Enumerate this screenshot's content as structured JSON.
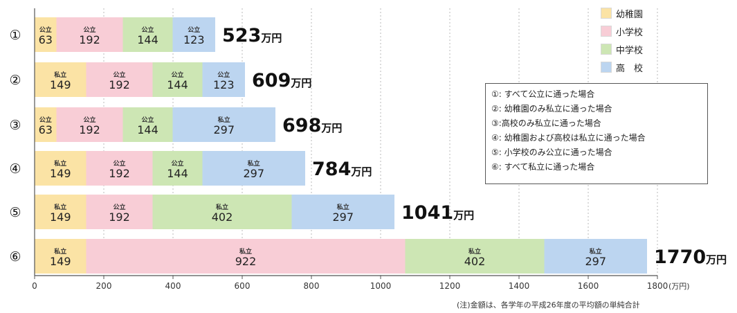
{
  "chart_data": {
    "type": "bar",
    "orientation": "horizontal",
    "stacked": true,
    "categories": [
      "①",
      "②",
      "③",
      "④",
      "⑤",
      "⑥"
    ],
    "series": [
      {
        "name": "幼稚園",
        "color": "#fbe3a5",
        "values": [
          63,
          149,
          63,
          149,
          149,
          149
        ],
        "type_labels": [
          "公立",
          "私立",
          "公立",
          "私立",
          "私立",
          "私立"
        ]
      },
      {
        "name": "小学校",
        "color": "#f8cdd6",
        "values": [
          192,
          192,
          192,
          192,
          192,
          922
        ],
        "type_labels": [
          "公立",
          "公立",
          "公立",
          "公立",
          "公立",
          "私立"
        ]
      },
      {
        "name": "中学校",
        "color": "#cde6b4",
        "values": [
          144,
          144,
          144,
          144,
          402,
          402
        ],
        "type_labels": [
          "公立",
          "公立",
          "公立",
          "公立",
          "私立",
          "私立"
        ]
      },
      {
        "name": "高　校",
        "color": "#bcd5f0",
        "values": [
          123,
          123,
          297,
          297,
          297,
          297
        ],
        "type_labels": [
          "公立",
          "公立",
          "私立",
          "私立",
          "私立",
          "私立"
        ]
      }
    ],
    "totals": [
      {
        "number": "523",
        "unit": "万円"
      },
      {
        "number": "609",
        "unit": "万円"
      },
      {
        "number": "698",
        "unit": "万円"
      },
      {
        "number": "784",
        "unit": "万円"
      },
      {
        "number": "1041",
        "unit": "万円"
      },
      {
        "number": "1770",
        "unit": "万円"
      }
    ],
    "xlim": [
      0,
      1800
    ],
    "xticks": [
      0,
      200,
      400,
      600,
      800,
      1000,
      1200,
      1400,
      1600,
      1800
    ],
    "xunit": "(万円)",
    "grid": "vertical dotted",
    "legend_position": "top-right",
    "scenarios": [
      "①: すべて公立に通った場合",
      "②: 幼稚園のみ私立に通った場合",
      "③:高校のみ私立に通った場合",
      "④: 幼稚園および高校は私立に通った場合",
      "⑤: 小学校のみ公立に通った場合",
      "⑥: すべて私立に通った場合"
    ],
    "footnote": "(注)金額は、各学年の平成26年度の平均額の単純合計"
  }
}
